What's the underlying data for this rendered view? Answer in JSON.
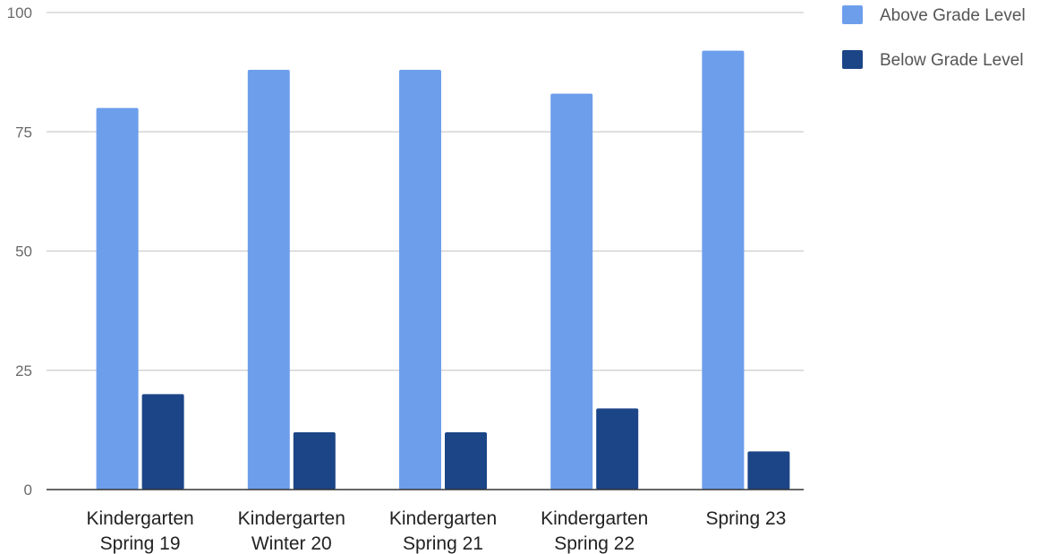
{
  "chart_data": {
    "type": "bar",
    "title": "",
    "xlabel": "",
    "ylabel": "",
    "ylim": [
      0,
      100
    ],
    "yticks": [
      0,
      25,
      50,
      75,
      100
    ],
    "grid": true,
    "legend_position": "top-right",
    "categories": [
      [
        "Kindergarten",
        "Spring 19"
      ],
      [
        "Kindergarten",
        "Winter 20"
      ],
      [
        "Kindergarten",
        "Spring 21"
      ],
      [
        "Kindergarten",
        "Spring 22"
      ],
      [
        "Spring 23"
      ]
    ],
    "series": [
      {
        "name": "Above Grade Level",
        "color": "#6d9eeb",
        "values": [
          80,
          88,
          88,
          83,
          92
        ]
      },
      {
        "name": "Below Grade Level",
        "color": "#1c4587",
        "values": [
          20,
          12,
          12,
          17,
          8
        ]
      }
    ]
  }
}
